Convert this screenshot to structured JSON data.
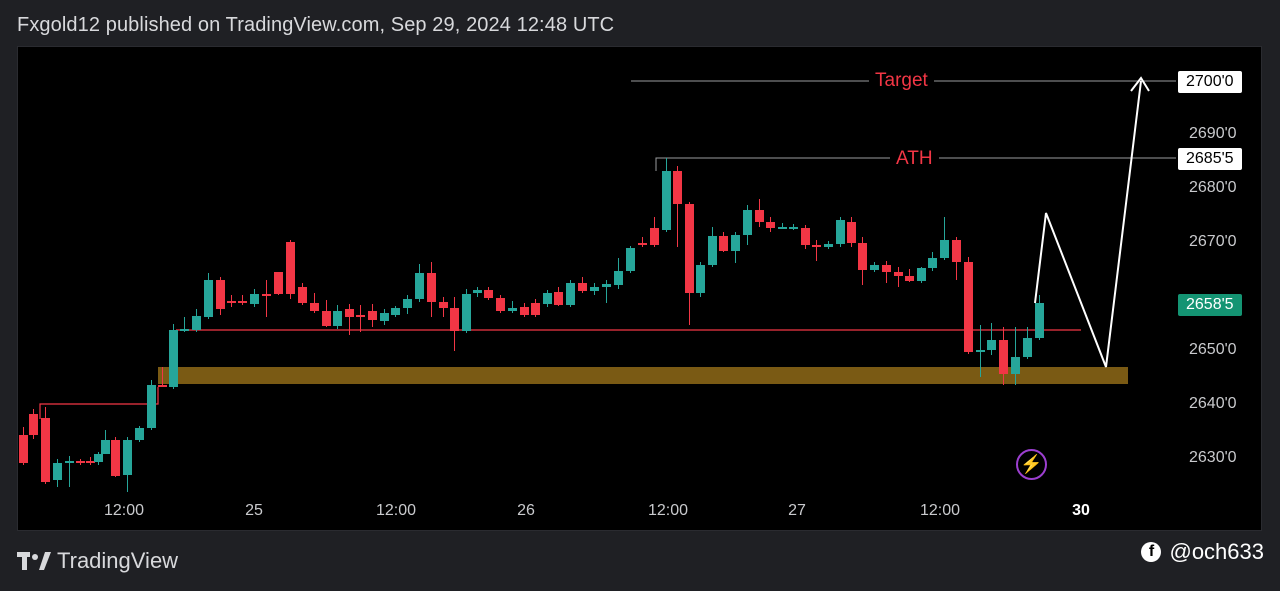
{
  "header": {
    "text": "Fxgold12 published on TradingView.com, Sep 29, 2024 12:48 UTC"
  },
  "chart": {
    "price_ticks": [
      "2690'0",
      "2680'0",
      "2670'0",
      "2650'0",
      "2640'0",
      "2630'0"
    ],
    "time_ticks": [
      "12:00",
      "25",
      "12:00",
      "26",
      "12:00",
      "27",
      "12:00",
      "30"
    ],
    "target_label": "Target",
    "target_price": "2700'0",
    "ath_label": "ATH",
    "ath_price": "2685'5",
    "current_price": "2658'5"
  },
  "colors": {
    "up": "#26a69a",
    "down": "#f23645",
    "zone": "#7a5a14",
    "projection": "#ffffff",
    "annotation": "#f23645",
    "current_badge": "#149473"
  },
  "footer": {
    "brand": "TradingView",
    "handle": "@och633"
  },
  "icons": [
    "tradingview-logo-icon",
    "facebook-icon",
    "lightning-icon"
  ]
}
